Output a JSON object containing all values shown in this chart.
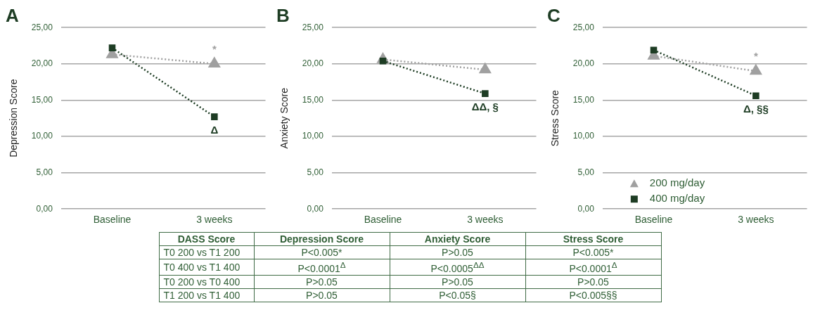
{
  "chart_data": [
    {
      "type": "line",
      "title": "A",
      "ylabel": "Depression Score",
      "categories": [
        "Baseline",
        "3 weeks"
      ],
      "series": [
        {
          "color": "#a0a0a0",
          "marker": "triangle",
          "values": [
            21.3,
            20.0
          ]
        },
        {
          "color": "#1e3d24",
          "marker": "square",
          "values": [
            22.2,
            12.7
          ]
        }
      ],
      "ylim": [
        0,
        25
      ],
      "yticks": [
        {
          "value": 0,
          "label": "0,00"
        },
        {
          "value": 5,
          "label": "5,00"
        },
        {
          "value": 10,
          "label": "10,00"
        },
        {
          "value": 15,
          "label": "15,00"
        },
        {
          "value": 20,
          "label": "20,00"
        },
        {
          "value": 25,
          "label": "25,00"
        }
      ],
      "grid": "y",
      "line_style": "dotted",
      "annotations": [
        {
          "text": "*",
          "x": "3 weeks",
          "y": 20.0
        },
        {
          "text": "Δ",
          "x": "3 weeks",
          "y": 12.7
        }
      ]
    },
    {
      "type": "line",
      "title": "B",
      "ylabel": "Anxiety Score",
      "categories": [
        "Baseline",
        "3 weeks"
      ],
      "series": [
        {
          "color": "#a0a0a0",
          "marker": "triangle",
          "values": [
            20.6,
            19.2
          ]
        },
        {
          "color": "#1e3d24",
          "marker": "square",
          "values": [
            20.4,
            15.9
          ]
        }
      ],
      "ylim": [
        0,
        25
      ],
      "yticks": [
        {
          "value": 0,
          "label": "0,00"
        },
        {
          "value": 5,
          "label": "5,00"
        },
        {
          "value": 10,
          "label": "10,00"
        },
        {
          "value": 15,
          "label": "15,00"
        },
        {
          "value": 20,
          "label": "20,00"
        },
        {
          "value": 25,
          "label": "25,00"
        }
      ],
      "grid": "y",
      "line_style": "dotted",
      "annotations": [
        {
          "text": "ΔΔ, §",
          "x": "3 weeks",
          "y": 15.9
        }
      ]
    },
    {
      "type": "line",
      "title": "C",
      "ylabel": "Stress Score",
      "categories": [
        "Baseline",
        "3 weeks"
      ],
      "series": [
        {
          "name": "200 mg/day",
          "color": "#a0a0a0",
          "marker": "triangle",
          "values": [
            21.1,
            19.0
          ]
        },
        {
          "name": "400 mg/day",
          "color": "#1e3d24",
          "marker": "square",
          "values": [
            21.9,
            15.6
          ]
        }
      ],
      "ylim": [
        0,
        25
      ],
      "yticks": [
        {
          "value": 0,
          "label": "0,00"
        },
        {
          "value": 5,
          "label": "5,00"
        },
        {
          "value": 10,
          "label": "10,00"
        },
        {
          "value": 15,
          "label": "15,00"
        },
        {
          "value": 20,
          "label": "20,00"
        },
        {
          "value": 25,
          "label": "25,00"
        }
      ],
      "grid": "y",
      "line_style": "dotted",
      "legend": "bottom left",
      "annotations": [
        {
          "text": "*",
          "x": "3 weeks",
          "y": 19.0
        },
        {
          "text": "Δ, §§",
          "x": "3 weeks",
          "y": 15.6
        }
      ]
    },
    {
      "type": "other",
      "annotations": [
        "DASS Score",
        "Depression Score",
        "Anxiety Score",
        "Stress Score",
        "T0 200 vs T1 200",
        "P<0.005*",
        "P>0.05",
        "P<0.005*",
        "T0 400 vs T1 400",
        "P<0.0001$^{Δ}$",
        "P<0.0005$^{ΔΔ}$",
        "P<0.0001$^{Δ}$",
        "T0 200 vs T0 400",
        "P>0.05",
        "P>0.05",
        "P>0.05",
        "T1 200 vs T1 400",
        "P>0.05",
        "P<0.05§",
        "P<0.005§§"
      ]
    }
  ]
}
